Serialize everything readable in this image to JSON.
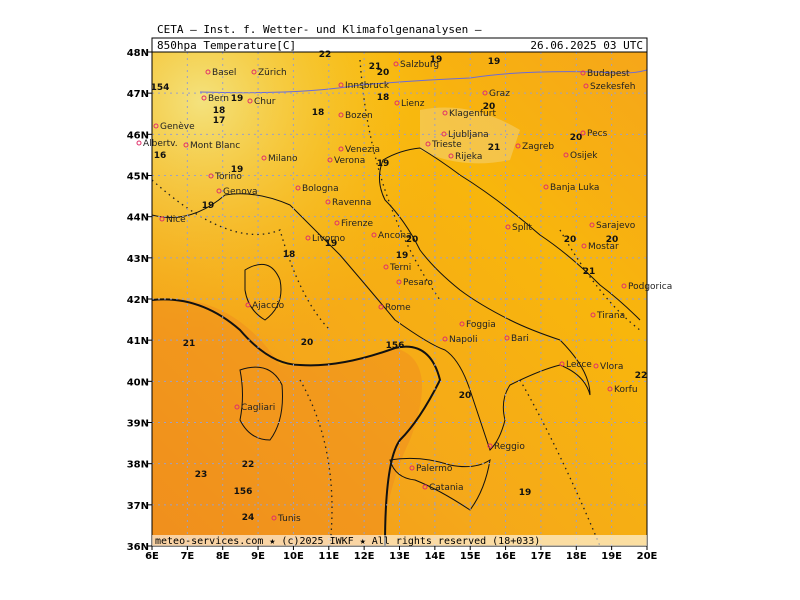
{
  "header": {
    "source": "CETA — Inst. f. Wetter- und Klimafolgenanalysen —",
    "field": "850hpa Temperature[C]",
    "valid": "26.06.2025 03 UTC"
  },
  "footer": "meteo-services.com ★ (c)2025 IWKF ★ All rights reserved (18+033)",
  "lon_labels": [
    "6E",
    "7E",
    "8E",
    "9E",
    "10E",
    "11E",
    "12E",
    "13E",
    "14E",
    "15E",
    "16E",
    "17E",
    "18E",
    "19E",
    "20E"
  ],
  "lat_labels": [
    "48N",
    "47N",
    "46N",
    "45N",
    "44N",
    "43N",
    "42N",
    "41N",
    "40N",
    "39N",
    "38N",
    "37N",
    "36N"
  ],
  "cities": [
    "Basel",
    "Zürich",
    "Bern",
    "Genève",
    "Albertv.",
    "Mont Blanc",
    "Chur",
    "Milano",
    "Torino",
    "Genova",
    "Nice",
    "Bologna",
    "Venezia",
    "Verona",
    "Ravenna",
    "Firenze",
    "Livorno",
    "Ancona",
    "Terni",
    "Pesaro",
    "Rome",
    "Ajaccio",
    "Cagliari",
    "Napoli",
    "Foggia",
    "Bari",
    "Lecce",
    "Vlora",
    "Tirana",
    "Korfu",
    "Podgorica",
    "Sarajevo",
    "Mostar",
    "Split",
    "Banja Luka",
    "Osijek",
    "Zagreb",
    "Rijeka",
    "Trieste",
    "Ljubljana",
    "Klagenfurt",
    "Graz",
    "Salzburg",
    "Innsbruck",
    "Bozen",
    "Lienz",
    "Budapest",
    "Szekesfeh",
    "Pecs",
    "Palermo",
    "Catania",
    "Reggio",
    "Tunis"
  ],
  "isotherm_labels": [
    22,
    21,
    19,
    19,
    154,
    19,
    18,
    17,
    18,
    20,
    18,
    20,
    21,
    20,
    16,
    19,
    19,
    19,
    18,
    20,
    19,
    19,
    20,
    20,
    21,
    21,
    20,
    156,
    20,
    22,
    22,
    23,
    156,
    24,
    19
  ]
}
